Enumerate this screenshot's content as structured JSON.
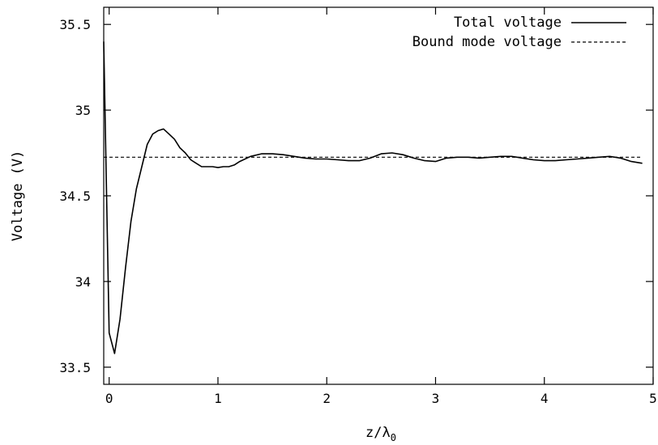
{
  "chart_data": {
    "type": "line",
    "xlabel": "z/λ",
    "xlabel_subscript": "0",
    "ylabel": "Voltage (V)",
    "xlim": [
      -0.05,
      5.0
    ],
    "ylim": [
      33.4,
      35.6
    ],
    "x_ticks": [
      0,
      1,
      2,
      3,
      4,
      5
    ],
    "x_tick_labels": [
      "0",
      "1",
      "2",
      "3",
      "4",
      "5"
    ],
    "y_ticks": [
      33.5,
      34,
      34.5,
      35,
      35.5
    ],
    "y_tick_labels": [
      "33.5",
      "34",
      "34.5",
      "35",
      "35.5"
    ],
    "grid": false,
    "legend_position": "top-right",
    "series": [
      {
        "name": "Total voltage",
        "style": "solid",
        "color": "#000000",
        "x": [
          -0.05,
          0.0,
          0.05,
          0.1,
          0.15,
          0.2,
          0.25,
          0.3,
          0.35,
          0.4,
          0.45,
          0.5,
          0.55,
          0.6,
          0.65,
          0.7,
          0.75,
          0.8,
          0.85,
          0.9,
          0.95,
          1.0,
          1.05,
          1.1,
          1.15,
          1.2,
          1.3,
          1.4,
          1.5,
          1.6,
          1.7,
          1.8,
          1.9,
          2.0,
          2.1,
          2.2,
          2.3,
          2.4,
          2.5,
          2.6,
          2.7,
          2.8,
          2.9,
          3.0,
          3.1,
          3.2,
          3.3,
          3.4,
          3.5,
          3.6,
          3.7,
          3.8,
          3.9,
          4.0,
          4.1,
          4.2,
          4.3,
          4.4,
          4.5,
          4.6,
          4.7,
          4.8,
          4.9
        ],
        "y": [
          35.4,
          33.7,
          33.58,
          33.78,
          34.08,
          34.35,
          34.54,
          34.67,
          34.8,
          34.86,
          34.88,
          34.89,
          34.86,
          34.83,
          34.78,
          34.75,
          34.71,
          34.69,
          34.67,
          34.67,
          34.67,
          34.665,
          34.67,
          34.67,
          34.68,
          34.7,
          34.73,
          34.745,
          34.745,
          34.74,
          34.73,
          34.72,
          34.715,
          34.715,
          34.71,
          34.705,
          34.705,
          34.72,
          34.745,
          34.75,
          34.74,
          34.72,
          34.705,
          34.7,
          34.72,
          34.725,
          34.725,
          34.72,
          34.725,
          34.73,
          34.73,
          34.72,
          34.71,
          34.705,
          34.705,
          34.71,
          34.715,
          34.72,
          34.725,
          34.73,
          34.72,
          34.7,
          34.69
        ]
      },
      {
        "name": "Bound mode voltage",
        "style": "dashed",
        "color": "#000000",
        "x": [
          -0.05,
          4.9
        ],
        "y": [
          34.725,
          34.725
        ]
      }
    ]
  }
}
